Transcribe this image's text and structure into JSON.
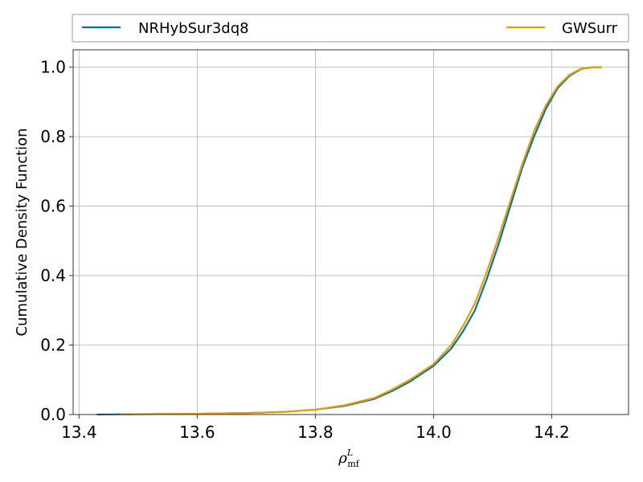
{
  "chart_data": {
    "type": "line",
    "title": "",
    "xlabel_symbol": "ρ",
    "xlabel_sup": "L",
    "xlabel_sub": "mf",
    "ylabel": "Cumulative Density Function",
    "xlim": [
      13.39,
      14.33
    ],
    "ylim": [
      0.0,
      1.05
    ],
    "xticks": [
      13.4,
      13.6,
      13.8,
      14.0,
      14.2
    ],
    "xtick_labels": [
      "13.4",
      "13.6",
      "13.8",
      "14.0",
      "14.2"
    ],
    "yticks": [
      0.0,
      0.2,
      0.4,
      0.6,
      0.8,
      1.0
    ],
    "ytick_labels": [
      "0.0",
      "0.2",
      "0.4",
      "0.6",
      "0.8",
      "1.0"
    ],
    "grid": true,
    "legend_placement": "top, above plot",
    "series": [
      {
        "name": "NRHybSur3dq8",
        "color": "#0072b2",
        "x": [
          13.43,
          13.5,
          13.6,
          13.7,
          13.75,
          13.8,
          13.85,
          13.9,
          13.93,
          13.96,
          14.0,
          14.03,
          14.05,
          14.07,
          14.09,
          14.11,
          14.13,
          14.15,
          14.17,
          14.19,
          14.21,
          14.23,
          14.25,
          14.27,
          14.285
        ],
        "y": [
          0.0,
          0.001,
          0.002,
          0.005,
          0.008,
          0.014,
          0.025,
          0.045,
          0.068,
          0.095,
          0.14,
          0.19,
          0.24,
          0.3,
          0.39,
          0.49,
          0.6,
          0.71,
          0.8,
          0.88,
          0.94,
          0.975,
          0.995,
          1.0,
          1.0
        ]
      },
      {
        "name": "GWSurr",
        "color": "#e69f00",
        "x": [
          13.47,
          13.5,
          13.6,
          13.7,
          13.75,
          13.8,
          13.85,
          13.9,
          13.93,
          13.96,
          14.0,
          14.03,
          14.05,
          14.07,
          14.09,
          14.11,
          14.13,
          14.15,
          14.17,
          14.19,
          14.21,
          14.23,
          14.25,
          14.27,
          14.285
        ],
        "y": [
          0.0,
          0.001,
          0.002,
          0.005,
          0.008,
          0.014,
          0.027,
          0.048,
          0.072,
          0.1,
          0.145,
          0.2,
          0.255,
          0.32,
          0.41,
          0.51,
          0.615,
          0.72,
          0.815,
          0.89,
          0.945,
          0.978,
          0.996,
          1.0,
          1.0
        ]
      }
    ]
  }
}
